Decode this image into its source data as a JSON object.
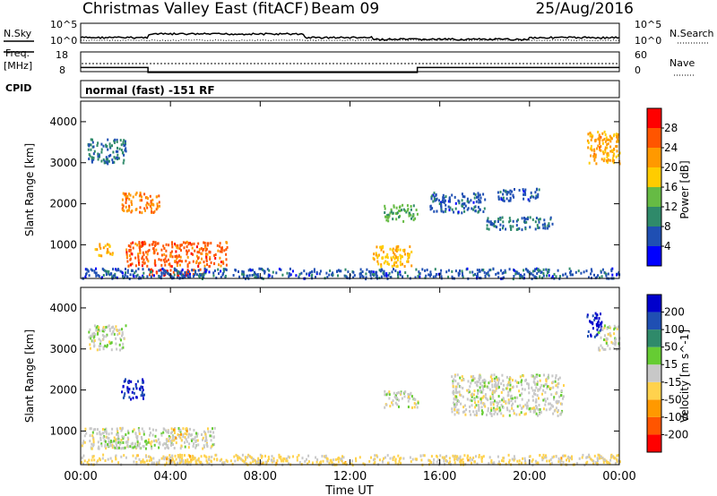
{
  "header": {
    "site": "Christmas Valley East (fitACF)",
    "beam": "Beam 09",
    "date": "25/Aug/2016"
  },
  "noise_panel": {
    "left_label": "N.Sky",
    "right_label": "N.Search",
    "left_ticks": [
      "10^5",
      "10^0"
    ],
    "right_ticks": [
      "10^5",
      "10^0"
    ]
  },
  "freq_panel": {
    "left_label_line1": "Freq.",
    "left_label_line2": "[MHz]",
    "right_label": "Nave",
    "left_ticks": [
      "18",
      "8"
    ],
    "right_ticks": [
      "60",
      "0"
    ]
  },
  "cpid": {
    "label": "CPID",
    "mode": "normal (fast) -151 RF"
  },
  "colors": {
    "power": [
      "#0000ff",
      "#1f4fb3",
      "#2f8a6a",
      "#66bb44",
      "#ffcc00",
      "#ff9900",
      "#ff5500",
      "#ff0000"
    ],
    "velocity": [
      "#ff0000",
      "#ff5500",
      "#ff9900",
      "#ffd24d",
      "#c8c8c8",
      "#66cc33",
      "#2f8a6a",
      "#1f4fb3",
      "#0000cc"
    ]
  },
  "chart_data": [
    {
      "type": "heatmap",
      "title": "",
      "xlabel": "Time UT",
      "ylabel": "Slant Range [km]",
      "xlim": [
        0,
        24
      ],
      "ylim": [
        180,
        4500
      ],
      "y_ticks": [
        "1000",
        "2000",
        "3000",
        "4000"
      ],
      "x_ticks": [
        "00:00",
        "04:00",
        "08:00",
        "12:00",
        "16:00",
        "20:00",
        "00:00"
      ],
      "colorbar": {
        "label": "Power [dB]",
        "ticks": [
          "4",
          "8",
          "12",
          "16",
          "20",
          "24",
          "28"
        ],
        "range": [
          0,
          30
        ]
      },
      "regions": [
        {
          "t": [
            0.3,
            2.0
          ],
          "r": [
            3000,
            3600
          ],
          "value": 8
        },
        {
          "t": [
            1.8,
            3.5
          ],
          "r": [
            1800,
            2300
          ],
          "value": 22
        },
        {
          "t": [
            0.6,
            1.4
          ],
          "r": [
            750,
            1050
          ],
          "value": 20
        },
        {
          "t": [
            2.0,
            6.5
          ],
          "r": [
            500,
            1100
          ],
          "value": 24
        },
        {
          "t": [
            3.0,
            5.5
          ],
          "r": [
            280,
            450
          ],
          "value": 26
        },
        {
          "t": [
            0.0,
            24.0
          ],
          "r": [
            200,
            450
          ],
          "value": 6
        },
        {
          "t": [
            13.0,
            14.8
          ],
          "r": [
            500,
            1000
          ],
          "value": 18
        },
        {
          "t": [
            13.5,
            15.0
          ],
          "r": [
            1600,
            2000
          ],
          "value": 12
        },
        {
          "t": [
            15.5,
            18.0
          ],
          "r": [
            1800,
            2300
          ],
          "value": 6
        },
        {
          "t": [
            18.0,
            21.0
          ],
          "r": [
            1400,
            1700
          ],
          "value": 8
        },
        {
          "t": [
            18.5,
            20.5
          ],
          "r": [
            2100,
            2400
          ],
          "value": 6
        },
        {
          "t": [
            22.5,
            24.0
          ],
          "r": [
            3000,
            3800
          ],
          "value": 20
        }
      ]
    },
    {
      "type": "heatmap",
      "title": "",
      "xlabel": "Time UT",
      "ylabel": "Slant Range [km]",
      "xlim": [
        0,
        24
      ],
      "ylim": [
        180,
        4500
      ],
      "y_ticks": [
        "1000",
        "2000",
        "3000",
        "4000"
      ],
      "x_ticks": [
        "00:00",
        "04:00",
        "08:00",
        "12:00",
        "16:00",
        "20:00",
        "00:00"
      ],
      "colorbar": {
        "label": "Velocity [m s^-1]",
        "ticks": [
          "200",
          "100",
          "50",
          "15",
          "-15",
          "-50",
          "-100",
          "-200"
        ],
        "range": [
          -250,
          250
        ]
      },
      "regions": [
        {
          "t": [
            0.3,
            2.0
          ],
          "r": [
            3000,
            3600
          ],
          "value": 0
        },
        {
          "t": [
            1.8,
            2.8
          ],
          "r": [
            1800,
            2300
          ],
          "value": 200
        },
        {
          "t": [
            0.0,
            6.0
          ],
          "r": [
            600,
            1100
          ],
          "value": 0
        },
        {
          "t": [
            1.0,
            3.0
          ],
          "r": [
            600,
            800
          ],
          "value": 30
        },
        {
          "t": [
            4.0,
            4.8
          ],
          "r": [
            800,
            1100
          ],
          "value": -60
        },
        {
          "t": [
            3.5,
            5.0
          ],
          "r": [
            250,
            450
          ],
          "value": -60
        },
        {
          "t": [
            0.0,
            24.0
          ],
          "r": [
            200,
            450
          ],
          "value": -40
        },
        {
          "t": [
            13.5,
            15.0
          ],
          "r": [
            1600,
            2000
          ],
          "value": 0
        },
        {
          "t": [
            16.5,
            21.5
          ],
          "r": [
            1400,
            2400
          ],
          "value": 0
        },
        {
          "t": [
            22.5,
            23.2
          ],
          "r": [
            3300,
            3900
          ],
          "value": 200
        },
        {
          "t": [
            23.0,
            24.0
          ],
          "r": [
            3000,
            3600
          ],
          "value": 0
        }
      ]
    }
  ]
}
